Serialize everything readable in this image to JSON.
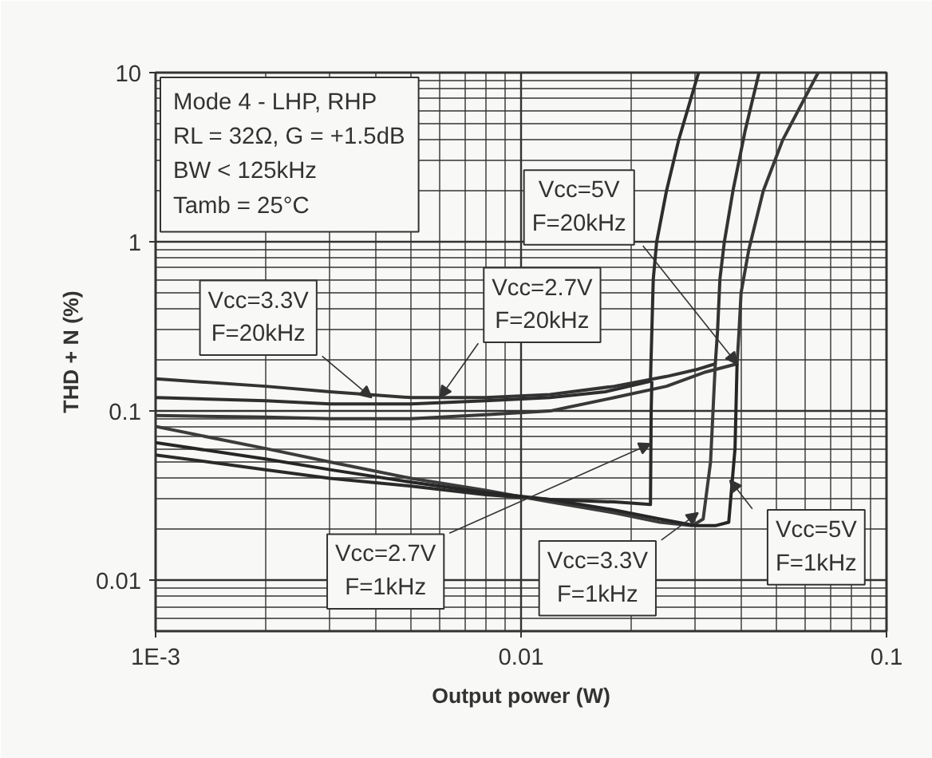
{
  "chart_data": {
    "type": "line",
    "xlabel": "Output power (W)",
    "ylabel": "THD + N (%)",
    "log": "xy",
    "grid": true,
    "marker": "none",
    "line_style": "solid",
    "xlim": [
      0.001,
      0.1
    ],
    "ylim": [
      0.005,
      10
    ],
    "xticks": [
      {
        "value": 0.001,
        "label": "1E-3"
      },
      0.01,
      0.1
    ],
    "yticks": [
      0.01,
      0.1,
      1,
      10
    ],
    "series": [
      {
        "color": "#333333",
        "x": [
          0.001,
          0.002,
          0.003,
          0.005,
          0.008,
          0.012,
          0.018,
          0.025,
          0.03,
          0.034,
          0.0345,
          0.035,
          0.036,
          0.038,
          0.041,
          0.0448
        ],
        "values": [
          0.155,
          0.14,
          0.13,
          0.12,
          0.12,
          0.125,
          0.14,
          0.16,
          0.175,
          0.19,
          0.3,
          0.6,
          1,
          2,
          4.5,
          10
        ]
      },
      {
        "color": "#2e2e2e",
        "x": [
          0.001,
          0.002,
          0.003,
          0.005,
          0.008,
          0.012,
          0.017,
          0.0226,
          0.0228,
          0.023,
          0.0235,
          0.025,
          0.027,
          0.0306
        ],
        "values": [
          0.12,
          0.115,
          0.11,
          0.11,
          0.115,
          0.12,
          0.13,
          0.15,
          0.3,
          0.6,
          1,
          2,
          4,
          10
        ]
      },
      {
        "color": "#383838",
        "x": [
          0.001,
          0.002,
          0.003,
          0.005,
          0.008,
          0.012,
          0.018,
          0.025,
          0.032,
          0.039,
          0.0395,
          0.04,
          0.042,
          0.046,
          0.052,
          0.065
        ],
        "values": [
          0.094,
          0.092,
          0.09,
          0.09,
          0.095,
          0.1,
          0.12,
          0.14,
          0.17,
          0.19,
          0.3,
          0.5,
          0.9,
          2,
          4,
          10
        ]
      },
      {
        "color": "#2a2a2a",
        "x": [
          0.001,
          0.002,
          0.003,
          0.005,
          0.008,
          0.012,
          0.018,
          0.0226,
          0.0227,
          0.0228
        ],
        "values": [
          0.055,
          0.045,
          0.04,
          0.036,
          0.032,
          0.03,
          0.029,
          0.028,
          0.1,
          0.15
        ]
      },
      {
        "color": "#3c3c3c",
        "x": [
          0.001,
          0.002,
          0.003,
          0.005,
          0.008,
          0.012,
          0.018,
          0.024,
          0.0294,
          0.0315,
          0.033,
          0.034
        ],
        "values": [
          0.081,
          0.06,
          0.05,
          0.04,
          0.034,
          0.029,
          0.025,
          0.022,
          0.021,
          0.023,
          0.05,
          0.19
        ]
      },
      {
        "color": "#262626",
        "x": [
          0.001,
          0.002,
          0.003,
          0.005,
          0.008,
          0.012,
          0.018,
          0.024,
          0.03,
          0.034,
          0.037,
          0.0385,
          0.039
        ],
        "values": [
          0.065,
          0.052,
          0.045,
          0.038,
          0.033,
          0.03,
          0.026,
          0.023,
          0.021,
          0.021,
          0.022,
          0.06,
          0.19
        ]
      }
    ],
    "annotations": [
      "Mode 4 - LHP, RHP",
      "RL = 32Ω, G = +1.5dB",
      "BW < 125kHz",
      "Tamb = 25°C",
      {
        "text": "Vcc=3.3V\nF=20kHz",
        "x": 0.0039,
        "y": 0.12
      },
      {
        "text": "Vcc=2.7V\nF=20kHz",
        "x": 0.006,
        "y": 0.12
      },
      {
        "text": "Vcc=5V\nF=20kHz",
        "x": 0.039,
        "y": 0.19
      },
      {
        "text": "Vcc=2.7V\nF=1kHz",
        "x": 0.0226,
        "y": 0.064
      },
      {
        "text": "Vcc=3.3V\nF=1kHz",
        "x": 0.0305,
        "y": 0.025
      },
      {
        "text": "Vcc=5V\nF=1kHz",
        "x": 0.0373,
        "y": 0.039
      }
    ]
  }
}
